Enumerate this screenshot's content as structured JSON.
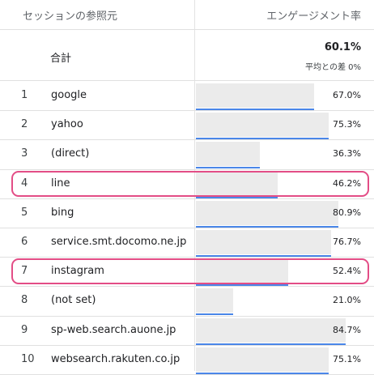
{
  "header": {
    "source_label": "セッションの参照元",
    "rate_label": "エンゲージメント率"
  },
  "total": {
    "label": "合計",
    "value": "60.1%",
    "sub": "平均との差 0%"
  },
  "rows": [
    {
      "index": "1",
      "name": "google",
      "value_label": "67.0%",
      "value": 67.0,
      "highlighted": false
    },
    {
      "index": "2",
      "name": "yahoo",
      "value_label": "75.3%",
      "value": 75.3,
      "highlighted": false
    },
    {
      "index": "3",
      "name": "(direct)",
      "value_label": "36.3%",
      "value": 36.3,
      "highlighted": false
    },
    {
      "index": "4",
      "name": "line",
      "value_label": "46.2%",
      "value": 46.2,
      "highlighted": true
    },
    {
      "index": "5",
      "name": "bing",
      "value_label": "80.9%",
      "value": 80.9,
      "highlighted": false
    },
    {
      "index": "6",
      "name": "service.smt.docomo.ne.jp",
      "value_label": "76.7%",
      "value": 76.7,
      "highlighted": false
    },
    {
      "index": "7",
      "name": "instagram",
      "value_label": "52.4%",
      "value": 52.4,
      "highlighted": true
    },
    {
      "index": "8",
      "name": "(not set)",
      "value_label": "21.0%",
      "value": 21.0,
      "highlighted": false
    },
    {
      "index": "9",
      "name": "sp-web.search.auone.jp",
      "value_label": "84.7%",
      "value": 84.7,
      "highlighted": false
    },
    {
      "index": "10",
      "name": "websearch.rakuten.co.jp",
      "value_label": "75.1%",
      "value": 75.1,
      "highlighted": false
    }
  ],
  "colors": {
    "bar_background": "#ebebeb",
    "bar_line": "#4a86e8",
    "highlight_border": "#e34d86"
  }
}
